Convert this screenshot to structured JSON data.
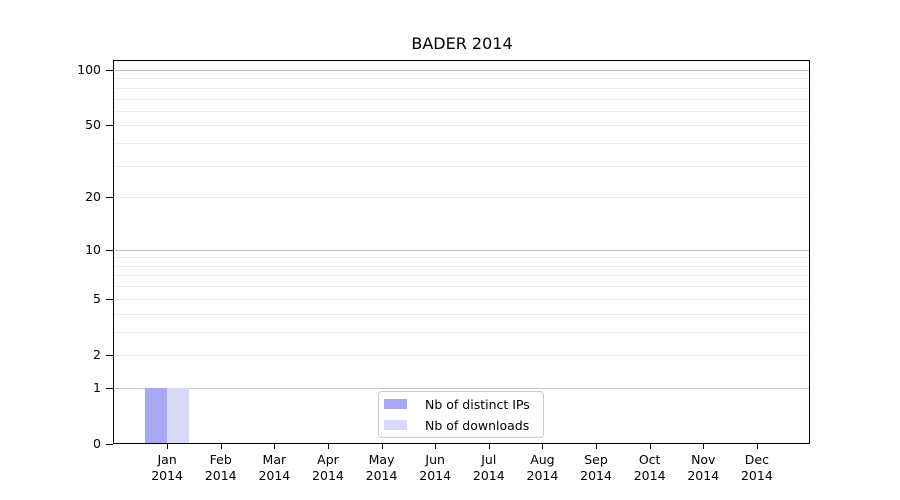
{
  "window": {
    "background": "#ffffff"
  },
  "chart_data": {
    "type": "bar",
    "title": "BADER 2014",
    "xlabel": "",
    "ylabel": "",
    "yscale": "log1p",
    "ylim": [
      0,
      100
    ],
    "yticks": [
      0,
      1,
      2,
      5,
      10,
      20,
      50,
      100
    ],
    "ytick_labels": [
      "0",
      "1",
      "2",
      "5",
      "10",
      "20",
      "50",
      "100"
    ],
    "categories": [
      {
        "month": "Jan",
        "year": "2014"
      },
      {
        "month": "Feb",
        "year": "2014"
      },
      {
        "month": "Mar",
        "year": "2014"
      },
      {
        "month": "Apr",
        "year": "2014"
      },
      {
        "month": "May",
        "year": "2014"
      },
      {
        "month": "Jun",
        "year": "2014"
      },
      {
        "month": "Jul",
        "year": "2014"
      },
      {
        "month": "Aug",
        "year": "2014"
      },
      {
        "month": "Sep",
        "year": "2014"
      },
      {
        "month": "Oct",
        "year": "2014"
      },
      {
        "month": "Nov",
        "year": "2014"
      },
      {
        "month": "Dec",
        "year": "2014"
      }
    ],
    "series": [
      {
        "name": "Nb of distinct IPs",
        "color": "#a8a8f2",
        "values": [
          1,
          0,
          0,
          0,
          0,
          0,
          0,
          0,
          0,
          0,
          0,
          0
        ]
      },
      {
        "name": "Nb of downloads",
        "color": "#d8d8f8",
        "values": [
          1,
          0,
          0,
          0,
          0,
          0,
          0,
          0,
          0,
          0,
          0,
          0
        ]
      }
    ],
    "grid": {
      "major_values": [
        1,
        10,
        100
      ],
      "minor_values": [
        2,
        3,
        4,
        5,
        6,
        7,
        8,
        9,
        20,
        30,
        40,
        50,
        60,
        70,
        80,
        90
      ],
      "major_color": "#c4c4c4",
      "minor_color": "#ececec"
    },
    "legend": {
      "position": "bottom-center-inside",
      "border_color": "#cccccc",
      "entries": [
        "Nb of distinct IPs",
        "Nb of downloads"
      ]
    }
  }
}
